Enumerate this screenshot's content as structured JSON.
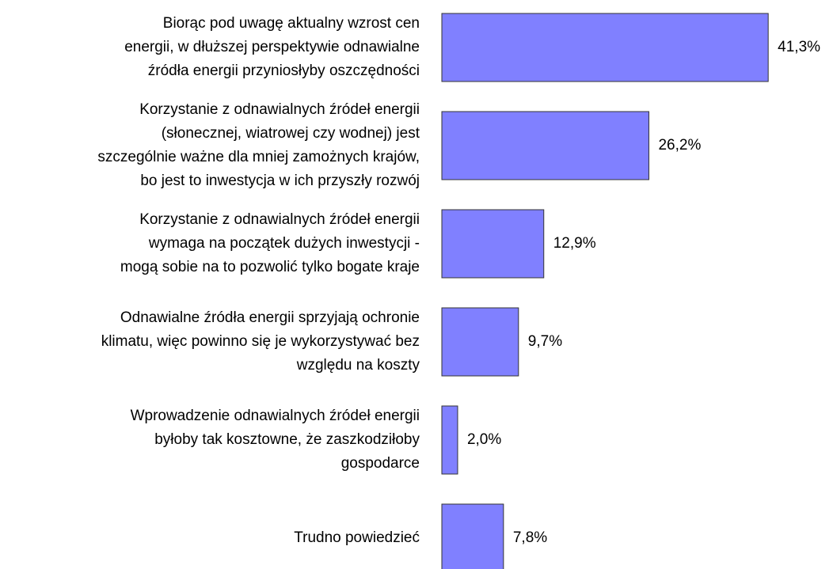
{
  "chart_data": {
    "type": "bar",
    "orientation": "horizontal",
    "categories": [
      [
        "Biorąc pod uwagę aktualny wzrost cen",
        "energii, w dłuższej perspektywie odnawialne",
        "źródła energii przyniosłyby oszczędności"
      ],
      [
        "Korzystanie z odnawialnych źródeł energii",
        "(słonecznej, wiatrowej czy wodnej) jest",
        "szczególnie ważne dla mniej zamożnych krajów,",
        "bo jest to inwestycja w ich przyszły rozwój"
      ],
      [
        "Korzystanie z odnawialnych źródeł energii",
        "wymaga na początek dużych inwestycji -",
        "mogą sobie na to pozwolić tylko bogate kraje"
      ],
      [
        "Odnawialne źródła energii sprzyjają ochronie",
        "klimatu, więc powinno się je wykorzystywać bez",
        "względu na koszty"
      ],
      [
        "Wprowadzenie odnawialnych źródeł energii",
        "byłoby tak kosztowne, że zaszkodziłoby",
        "gospodarce"
      ],
      [
        "Trudno powiedzieć"
      ]
    ],
    "values": [
      41.3,
      26.2,
      12.9,
      9.7,
      2.0,
      7.8
    ],
    "value_labels": [
      "41,3%",
      "26,2%",
      "12,9%",
      "9,7%",
      "2,0%",
      "7,8%"
    ],
    "color": "#8080ff"
  }
}
